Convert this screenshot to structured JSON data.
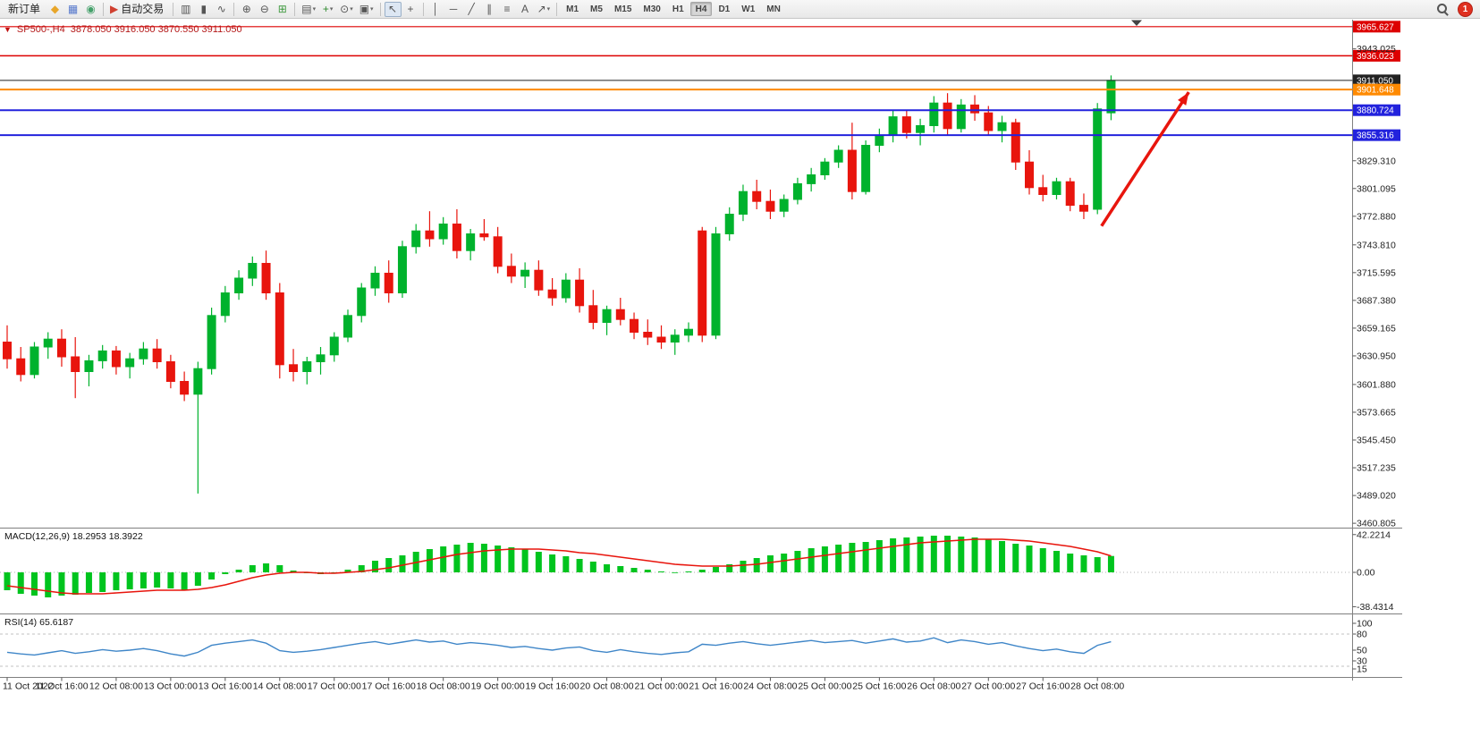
{
  "toolbar": {
    "new_order": "新订单",
    "auto_trading": "自动交易",
    "timeframes": [
      "M1",
      "M5",
      "M15",
      "M30",
      "H1",
      "H4",
      "D1",
      "W1",
      "MN"
    ],
    "active_timeframe": "H4",
    "notification_count": "1",
    "items": [
      {
        "name": "new-order-button",
        "label": "新订单"
      },
      {
        "name": "alerts-icon-button",
        "glyph": "◆",
        "color": "#e8a62a"
      },
      {
        "name": "chart-window-icon-button",
        "glyph": "▦",
        "color": "#5577cc"
      },
      {
        "name": "market-watch-icon-button",
        "glyph": "◉",
        "color": "#44a06a"
      },
      {
        "type": "separator"
      },
      {
        "name": "auto-trading-button",
        "glyph": "▶",
        "color": "#d04030",
        "label": "自动交易"
      },
      {
        "type": "separator"
      },
      {
        "name": "bar-chart-icon-button",
        "glyph": "▥"
      },
      {
        "name": "candlestick-icon-button",
        "glyph": "▮"
      },
      {
        "name": "line-chart-icon-button",
        "glyph": "∿"
      },
      {
        "type": "separator"
      },
      {
        "name": "zoom-in-icon-button",
        "glyph": "⊕"
      },
      {
        "name": "zoom-out-icon-button",
        "glyph": "⊖"
      },
      {
        "name": "tile-windows-icon-button",
        "glyph": "⊞",
        "color": "#3f9a3f"
      },
      {
        "type": "separator"
      },
      {
        "name": "arrange-windows-icon-button",
        "glyph": "▤",
        "caret": true
      },
      {
        "name": "add-indicator-icon-button",
        "glyph": "+",
        "color": "#2e8b2e",
        "caret": true
      },
      {
        "name": "periods-icon-button",
        "glyph": "⊙",
        "caret": true
      },
      {
        "name": "templates-icon-button",
        "glyph": "▣",
        "caret": true
      },
      {
        "type": "separator"
      },
      {
        "name": "cursor-icon-button",
        "glyph": "↖",
        "active": true
      },
      {
        "name": "crosshair-icon-button",
        "glyph": "+"
      },
      {
        "type": "separator"
      },
      {
        "name": "vertical-line-icon-button",
        "glyph": "│"
      },
      {
        "name": "horizontal-line-icon-button",
        "glyph": "─"
      },
      {
        "name": "trendline-icon-button",
        "glyph": "╱"
      },
      {
        "name": "channel-icon-button",
        "glyph": "∥"
      },
      {
        "name": "fibonacci-icon-button",
        "glyph": "≡"
      },
      {
        "name": "text-icon-button",
        "glyph": "A"
      },
      {
        "name": "arrows-icon-button",
        "glyph": "↗",
        "caret": true
      },
      {
        "type": "separator"
      },
      {
        "type": "timeframes"
      },
      {
        "type": "spacer"
      },
      {
        "type": "magnifier",
        "name": "search-icon"
      },
      {
        "type": "badge",
        "name": "notification-badge",
        "label": "1"
      }
    ]
  },
  "chart_header": {
    "symbol": "SP500-,H4",
    "ohlc": "3878.050 3916.050 3870.550 3911.050"
  },
  "panels": {
    "macd": {
      "label": "MACD(12,26,9)",
      "values_text": "18.2953 18.3922"
    },
    "rsi": {
      "label": "RSI(14)",
      "value_text": "65.6187"
    }
  },
  "price_axis": {
    "tick_labels": [
      "3943.025",
      "3829.310",
      "3801.095",
      "3772.880",
      "3743.810",
      "3715.595",
      "3687.380",
      "3659.165",
      "3630.950",
      "3601.880",
      "3573.665",
      "3545.450",
      "3517.235",
      "3489.020",
      "3460.805"
    ]
  },
  "chart_data": [
    {
      "type": "candlestick",
      "title": "SP500- H4",
      "ylim": [
        3455,
        3972
      ],
      "x_label_step": 4,
      "x_labels": [
        "11 Oct 2022",
        "11 Oct 16:00",
        "12 Oct 08:00",
        "13 Oct 00:00",
        "13 Oct 16:00",
        "14 Oct 08:00",
        "17 Oct 00:00",
        "17 Oct 16:00",
        "18 Oct 08:00",
        "19 Oct 00:00",
        "19 Oct 16:00",
        "20 Oct 08:00",
        "21 Oct 00:00",
        "21 Oct 16:00",
        "24 Oct 08:00",
        "25 Oct 00:00",
        "25 Oct 16:00",
        "26 Oct 08:00",
        "27 Oct 00:00",
        "27 Oct 16:00",
        "28 Oct 08:00"
      ],
      "candles": [
        [
          3645,
          3662,
          3618,
          3628
        ],
        [
          3628,
          3640,
          3605,
          3612
        ],
        [
          3612,
          3645,
          3608,
          3640
        ],
        [
          3640,
          3655,
          3628,
          3648
        ],
        [
          3648,
          3658,
          3620,
          3630
        ],
        [
          3630,
          3650,
          3588,
          3615
        ],
        [
          3615,
          3632,
          3600,
          3626
        ],
        [
          3626,
          3642,
          3618,
          3636
        ],
        [
          3636,
          3641,
          3612,
          3620
        ],
        [
          3620,
          3634,
          3608,
          3628
        ],
        [
          3628,
          3645,
          3622,
          3638
        ],
        [
          3638,
          3648,
          3618,
          3625
        ],
        [
          3625,
          3632,
          3598,
          3605
        ],
        [
          3605,
          3615,
          3585,
          3592
        ],
        [
          3592,
          3625,
          3491,
          3618
        ],
        [
          3618,
          3680,
          3612,
          3672
        ],
        [
          3672,
          3702,
          3665,
          3695
        ],
        [
          3695,
          3718,
          3688,
          3710
        ],
        [
          3710,
          3732,
          3702,
          3725
        ],
        [
          3725,
          3738,
          3688,
          3695
        ],
        [
          3695,
          3705,
          3608,
          3622
        ],
        [
          3622,
          3638,
          3605,
          3615
        ],
        [
          3615,
          3630,
          3602,
          3625
        ],
        [
          3625,
          3640,
          3612,
          3632
        ],
        [
          3632,
          3655,
          3625,
          3650
        ],
        [
          3650,
          3678,
          3645,
          3672
        ],
        [
          3672,
          3705,
          3665,
          3700
        ],
        [
          3700,
          3722,
          3692,
          3715
        ],
        [
          3715,
          3728,
          3685,
          3695
        ],
        [
          3695,
          3748,
          3690,
          3742
        ],
        [
          3742,
          3765,
          3735,
          3758
        ],
        [
          3758,
          3778,
          3742,
          3750
        ],
        [
          3750,
          3772,
          3744,
          3765
        ],
        [
          3765,
          3780,
          3730,
          3738
        ],
        [
          3738,
          3760,
          3728,
          3755
        ],
        [
          3755,
          3770,
          3748,
          3752
        ],
        [
          3752,
          3762,
          3715,
          3722
        ],
        [
          3722,
          3735,
          3705,
          3712
        ],
        [
          3712,
          3726,
          3700,
          3718
        ],
        [
          3718,
          3728,
          3692,
          3698
        ],
        [
          3698,
          3710,
          3682,
          3690
        ],
        [
          3690,
          3715,
          3685,
          3708
        ],
        [
          3708,
          3720,
          3675,
          3682
        ],
        [
          3682,
          3698,
          3658,
          3665
        ],
        [
          3665,
          3682,
          3652,
          3678
        ],
        [
          3678,
          3690,
          3662,
          3668
        ],
        [
          3668,
          3675,
          3648,
          3655
        ],
        [
          3655,
          3668,
          3642,
          3650
        ],
        [
          3650,
          3662,
          3638,
          3645
        ],
        [
          3645,
          3658,
          3632,
          3652
        ],
        [
          3652,
          3665,
          3645,
          3658
        ],
        [
          3758,
          3762,
          3645,
          3652
        ],
        [
          3652,
          3762,
          3648,
          3755
        ],
        [
          3755,
          3782,
          3748,
          3775
        ],
        [
          3775,
          3805,
          3768,
          3798
        ],
        [
          3798,
          3810,
          3780,
          3788
        ],
        [
          3788,
          3800,
          3770,
          3778
        ],
        [
          3778,
          3795,
          3772,
          3790
        ],
        [
          3790,
          3812,
          3785,
          3806
        ],
        [
          3806,
          3822,
          3798,
          3815
        ],
        [
          3815,
          3832,
          3810,
          3828
        ],
        [
          3828,
          3845,
          3822,
          3840
        ],
        [
          3840,
          3868,
          3790,
          3798
        ],
        [
          3798,
          3850,
          3795,
          3845
        ],
        [
          3845,
          3862,
          3838,
          3855
        ],
        [
          3855,
          3880,
          3848,
          3874
        ],
        [
          3874,
          3880,
          3852,
          3858
        ],
        [
          3858,
          3872,
          3845,
          3865
        ],
        [
          3865,
          3895,
          3858,
          3888
        ],
        [
          3888,
          3898,
          3855,
          3862
        ],
        [
          3862,
          3892,
          3858,
          3886
        ],
        [
          3886,
          3896,
          3870,
          3878
        ],
        [
          3878,
          3885,
          3855,
          3860
        ],
        [
          3860,
          3875,
          3848,
          3868
        ],
        [
          3868,
          3872,
          3820,
          3828
        ],
        [
          3828,
          3840,
          3795,
          3802
        ],
        [
          3802,
          3815,
          3788,
          3795
        ],
        [
          3795,
          3812,
          3790,
          3808
        ],
        [
          3808,
          3812,
          3778,
          3784
        ],
        [
          3784,
          3796,
          3770,
          3778
        ],
        [
          3780,
          3888,
          3775,
          3882
        ],
        [
          3878.05,
          3916.05,
          3870.55,
          3911.05
        ]
      ],
      "colors": {
        "up": "#00b22d",
        "down": "#e8150d"
      },
      "hlines": [
        {
          "label": "3965.627",
          "price": 3965.627,
          "color": "#dd0000",
          "width": 1.2
        },
        {
          "label": "3936.023",
          "price": 3936.023,
          "color": "#dd0000",
          "width": 1.4
        },
        {
          "label": "3911.050",
          "price": 3911.05,
          "color": "#222222",
          "width": 1,
          "role": "current-price"
        },
        {
          "label": "3901.648",
          "price": 3901.648,
          "color": "#ff8a00",
          "width": 2
        },
        {
          "label": "3880.724",
          "price": 3880.724,
          "color": "#2222dd",
          "width": 2
        },
        {
          "label": "3855.316",
          "price": 3855.316,
          "color": "#2222dd",
          "width": 2
        }
      ],
      "arrow": {
        "from": {
          "index": 80.3,
          "price": 3763
        },
        "to": {
          "index": 86.7,
          "price": 3899
        },
        "color": "#e8150d"
      }
    },
    {
      "type": "bar",
      "name": "MACD(12,26,9)",
      "current_values": [
        18.2953,
        18.3922
      ],
      "scale_labels": [
        "42.2214",
        "0.00",
        "-38.4314"
      ],
      "scale_values": [
        42.2214,
        0,
        -38.4314
      ],
      "histogram": [
        -20,
        -24,
        -26,
        -28,
        -26,
        -25,
        -23,
        -22,
        -20,
        -19,
        -18,
        -17,
        -18,
        -20,
        -15,
        -8,
        -2,
        3,
        8,
        10,
        8,
        2,
        -1,
        -2,
        0,
        3,
        8,
        13,
        16,
        19,
        23,
        26,
        29,
        31,
        33,
        32,
        30,
        28,
        26,
        23,
        20,
        18,
        15,
        12,
        9,
        7,
        5,
        3,
        1,
        0,
        1,
        3,
        6,
        9,
        13,
        16,
        19,
        21,
        24,
        27,
        29,
        31,
        33,
        34,
        36,
        38,
        39,
        40,
        41,
        41,
        40,
        39,
        37,
        35,
        32,
        30,
        27,
        24,
        21,
        19,
        17,
        18.2953
      ],
      "signal": [
        -15,
        -17,
        -19,
        -21,
        -23,
        -24,
        -24,
        -24,
        -23,
        -22,
        -21,
        -20,
        -20,
        -20,
        -19,
        -17,
        -14,
        -10,
        -6,
        -3,
        -1,
        0,
        0,
        -1,
        -1,
        0,
        1,
        3,
        5,
        8,
        11,
        14,
        17,
        20,
        22,
        24,
        25,
        26,
        26,
        26,
        25,
        24,
        22,
        21,
        19,
        17,
        15,
        13,
        11,
        9,
        8,
        7,
        7,
        7,
        8,
        9,
        11,
        13,
        15,
        17,
        19,
        21,
        23,
        25,
        27,
        29,
        31,
        33,
        34,
        35,
        36,
        37,
        37,
        37,
        36,
        35,
        33,
        31,
        29,
        26,
        23,
        18.3922
      ],
      "colors": {
        "histogram": "#00c41e",
        "signal": "#e8150d"
      }
    },
    {
      "type": "line",
      "name": "RSI(14)",
      "current_value": 65.6187,
      "scale_labels": [
        "100",
        "80",
        "50",
        "30",
        "15"
      ],
      "scale_values": [
        100,
        80,
        50,
        30,
        15
      ],
      "levels": [
        80,
        20
      ],
      "values": [
        46,
        43,
        41,
        45,
        49,
        44,
        47,
        51,
        48,
        50,
        53,
        49,
        43,
        39,
        46,
        59,
        63,
        66,
        69,
        63,
        49,
        46,
        48,
        51,
        55,
        59,
        63,
        66,
        61,
        65,
        69,
        65,
        67,
        61,
        64,
        62,
        59,
        55,
        57,
        53,
        50,
        54,
        56,
        49,
        46,
        51,
        47,
        44,
        42,
        45,
        47,
        61,
        59,
        63,
        66,
        62,
        59,
        62,
        65,
        68,
        64,
        66,
        68,
        63,
        67,
        71,
        65,
        67,
        73,
        64,
        69,
        66,
        61,
        64,
        58,
        53,
        49,
        52,
        47,
        44,
        59,
        65.6187
      ],
      "color": "#3f86c8"
    }
  ]
}
